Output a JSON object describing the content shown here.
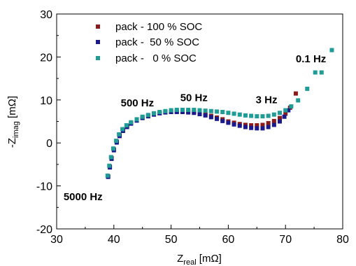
{
  "chart_data": {
    "type": "scatter",
    "xlim": [
      30,
      80
    ],
    "ylim": [
      -20,
      30
    ],
    "x_ticks": [
      30,
      40,
      50,
      60,
      70,
      80
    ],
    "y_ticks": [
      -20,
      -10,
      0,
      10,
      20,
      30
    ],
    "xlabel": {
      "main": "Z",
      "sub": "real",
      "unit": " [mΩ]"
    },
    "ylabel": {
      "main": "-Z",
      "sub": "imag",
      "unit": " [mΩ]"
    },
    "grid": false,
    "legend_position": "top-left",
    "series": [
      {
        "name": "pack - 100 % SOC",
        "color": "#8b1a1a",
        "points": [
          [
            39.0,
            -7.8
          ],
          [
            39.3,
            -5.5
          ],
          [
            39.6,
            -3.5
          ],
          [
            40.0,
            -1.5
          ],
          [
            40.5,
            0.3
          ],
          [
            41.0,
            1.8
          ],
          [
            41.6,
            3.0
          ],
          [
            42.3,
            3.9
          ],
          [
            43.0,
            4.6
          ],
          [
            44.0,
            5.3
          ],
          [
            45.0,
            5.9
          ],
          [
            46.0,
            6.3
          ],
          [
            47.0,
            6.7
          ],
          [
            48.0,
            7.0
          ],
          [
            49.0,
            7.2
          ],
          [
            50.0,
            7.3
          ],
          [
            51.0,
            7.4
          ],
          [
            52.0,
            7.4
          ],
          [
            53.0,
            7.3
          ],
          [
            54.0,
            7.2
          ],
          [
            55.0,
            7.0
          ],
          [
            56.0,
            6.7
          ],
          [
            57.0,
            6.3
          ],
          [
            58.0,
            5.9
          ],
          [
            59.0,
            5.5
          ],
          [
            60.0,
            5.0
          ],
          [
            61.0,
            4.7
          ],
          [
            62.0,
            4.4
          ],
          [
            63.0,
            4.2
          ],
          [
            64.0,
            4.1
          ],
          [
            65.0,
            4.1
          ],
          [
            66.0,
            4.2
          ],
          [
            67.0,
            4.6
          ],
          [
            68.0,
            5.1
          ],
          [
            69.0,
            5.8
          ],
          [
            70.0,
            6.8
          ],
          [
            70.8,
            8.2
          ],
          [
            71.8,
            11.5
          ]
        ]
      },
      {
        "name": "pack -  50 % SOC",
        "color": "#1a1a8c",
        "points": [
          [
            39.0,
            -7.9
          ],
          [
            39.3,
            -5.7
          ],
          [
            39.6,
            -3.7
          ],
          [
            40.0,
            -1.7
          ],
          [
            40.5,
            0.1
          ],
          [
            41.0,
            1.6
          ],
          [
            41.6,
            2.8
          ],
          [
            42.3,
            3.7
          ],
          [
            43.0,
            4.5
          ],
          [
            44.0,
            5.2
          ],
          [
            45.0,
            5.8
          ],
          [
            46.0,
            6.2
          ],
          [
            47.0,
            6.6
          ],
          [
            48.0,
            6.9
          ],
          [
            49.0,
            7.1
          ],
          [
            50.0,
            7.2
          ],
          [
            51.0,
            7.2
          ],
          [
            52.0,
            7.2
          ],
          [
            53.0,
            7.1
          ],
          [
            54.0,
            7.0
          ],
          [
            55.0,
            6.7
          ],
          [
            56.0,
            6.4
          ],
          [
            57.0,
            6.0
          ],
          [
            58.0,
            5.6
          ],
          [
            59.0,
            5.1
          ],
          [
            60.0,
            4.7
          ],
          [
            61.0,
            4.3
          ],
          [
            62.0,
            4.0
          ],
          [
            63.0,
            3.7
          ],
          [
            64.0,
            3.5
          ],
          [
            65.0,
            3.4
          ],
          [
            66.0,
            3.4
          ],
          [
            67.0,
            3.7
          ],
          [
            68.0,
            4.2
          ],
          [
            69.0,
            5.0
          ],
          [
            69.8,
            6.1
          ],
          [
            70.5,
            7.6
          ]
        ]
      },
      {
        "name": "pack -   0 % SOC",
        "color": "#1f9c96",
        "points": [
          [
            38.9,
            -7.6
          ],
          [
            39.2,
            -5.3
          ],
          [
            39.5,
            -3.3
          ],
          [
            39.9,
            -1.3
          ],
          [
            40.4,
            0.5
          ],
          [
            40.9,
            2.0
          ],
          [
            41.5,
            3.2
          ],
          [
            42.2,
            4.1
          ],
          [
            43.0,
            4.8
          ],
          [
            44.0,
            5.5
          ],
          [
            45.0,
            6.1
          ],
          [
            46.0,
            6.5
          ],
          [
            47.0,
            6.9
          ],
          [
            48.0,
            7.2
          ],
          [
            49.0,
            7.4
          ],
          [
            50.0,
            7.6
          ],
          [
            51.0,
            7.7
          ],
          [
            52.0,
            7.7
          ],
          [
            53.0,
            7.7
          ],
          [
            54.0,
            7.7
          ],
          [
            55.0,
            7.6
          ],
          [
            56.0,
            7.5
          ],
          [
            57.0,
            7.4
          ],
          [
            58.0,
            7.3
          ],
          [
            59.0,
            7.2
          ],
          [
            60.0,
            7.0
          ],
          [
            61.0,
            6.8
          ],
          [
            62.0,
            6.6
          ],
          [
            63.0,
            6.4
          ],
          [
            64.0,
            6.3
          ],
          [
            65.0,
            6.2
          ],
          [
            66.0,
            6.2
          ],
          [
            67.0,
            6.3
          ],
          [
            68.0,
            6.6
          ],
          [
            69.0,
            7.0
          ],
          [
            70.0,
            7.6
          ],
          [
            71.0,
            8.5
          ],
          [
            72.2,
            9.9
          ],
          [
            73.8,
            12.6
          ],
          [
            75.2,
            16.4
          ],
          [
            76.3,
            16.4
          ],
          [
            78.1,
            21.6
          ]
        ]
      }
    ],
    "annotations": [
      {
        "text": "5000 Hz",
        "x": 31.2,
        "y": -13.3
      },
      {
        "text": "500 Hz",
        "x": 41.2,
        "y": 8.5
      },
      {
        "text": "50 Hz",
        "x": 51.6,
        "y": 9.7
      },
      {
        "text": "3 Hz",
        "x": 64.8,
        "y": 9.2
      },
      {
        "text": "0.1 Hz",
        "x": 71.8,
        "y": 18.8
      }
    ]
  }
}
